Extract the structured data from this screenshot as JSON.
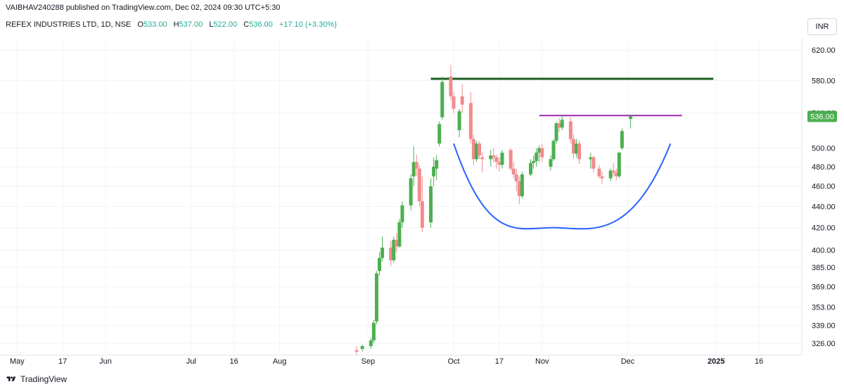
{
  "header": {
    "published_line": "VAIBHAV240288 published on TradingView.com, Dec 02, 2024 09:30 UTC+5:30"
  },
  "legend": {
    "symbol": "REFEX INDUSTRIES LTD, 1D, NSE",
    "open_label": "O",
    "open_value": "533.00",
    "high_label": "H",
    "high_value": "537.00",
    "low_label": "L",
    "low_value": "522.00",
    "close_label": "C",
    "close_value": "536.00",
    "change": "+17.10 (+3.30%)"
  },
  "currency_button": "INR",
  "footer": {
    "brand": "TradingView"
  },
  "colors": {
    "up": "#4caf50",
    "down": "#f28b8d",
    "resistance": "#1b5e20",
    "neckline": "#9c27b0",
    "cup": "#2962ff"
  },
  "chart_data": {
    "type": "candlestick",
    "price_axis": {
      "ticks": [
        620,
        580,
        540,
        500,
        480,
        460,
        440,
        420,
        400,
        385,
        369,
        353,
        339,
        326
      ],
      "tick_labels": [
        "620.00",
        "580.00",
        "540.00",
        "500.00",
        "480.00",
        "460.00",
        "440.00",
        "420.00",
        "400.00",
        "385.00",
        "369.00",
        "353.00",
        "339.00",
        "326.00"
      ],
      "scale": "log",
      "last_price_label": "536.00"
    },
    "time_axis": {
      "labels": [
        {
          "date": "2024-05-01",
          "text": "May",
          "bold": false
        },
        {
          "date": "2024-05-17",
          "text": "17",
          "bold": false
        },
        {
          "date": "2024-06-01",
          "text": "Jun",
          "bold": false
        },
        {
          "date": "2024-07-01",
          "text": "Jul",
          "bold": false
        },
        {
          "date": "2024-07-16",
          "text": "16",
          "bold": false
        },
        {
          "date": "2024-08-01",
          "text": "Aug",
          "bold": false
        },
        {
          "date": "2024-09-01",
          "text": "Sep",
          "bold": false
        },
        {
          "date": "2024-10-01",
          "text": "Oct",
          "bold": false
        },
        {
          "date": "2024-10-17",
          "text": "17",
          "bold": false
        },
        {
          "date": "2024-11-01",
          "text": "Nov",
          "bold": false
        },
        {
          "date": "2024-12-01",
          "text": "Dec",
          "bold": false
        },
        {
          "date": "2025-01-01",
          "text": "2025",
          "bold": true
        },
        {
          "date": "2025-01-16",
          "text": "16",
          "bold": false
        }
      ],
      "range": [
        "2024-04-27",
        "2025-01-31"
      ]
    },
    "candles": [
      {
        "t": "2024-08-28",
        "o": 321,
        "h": 324,
        "l": 318,
        "c": 320
      },
      {
        "t": "2024-08-30",
        "o": 322,
        "h": 325,
        "l": 320,
        "c": 324
      },
      {
        "t": "2024-09-02",
        "o": 324,
        "h": 330,
        "l": 322,
        "c": 328
      },
      {
        "t": "2024-09-03",
        "o": 328,
        "h": 343,
        "l": 326,
        "c": 341
      },
      {
        "t": "2024-09-04",
        "o": 342,
        "h": 382,
        "l": 340,
        "c": 380
      },
      {
        "t": "2024-09-05",
        "o": 382,
        "h": 398,
        "l": 378,
        "c": 393
      },
      {
        "t": "2024-09-06",
        "o": 393,
        "h": 412,
        "l": 390,
        "c": 402
      },
      {
        "t": "2024-09-09",
        "o": 402,
        "h": 408,
        "l": 386,
        "c": 391
      },
      {
        "t": "2024-09-10",
        "o": 391,
        "h": 412,
        "l": 389,
        "c": 409
      },
      {
        "t": "2024-09-11",
        "o": 409,
        "h": 415,
        "l": 398,
        "c": 403
      },
      {
        "t": "2024-09-12",
        "o": 403,
        "h": 428,
        "l": 402,
        "c": 425
      },
      {
        "t": "2024-09-13",
        "o": 425,
        "h": 445,
        "l": 420,
        "c": 441
      },
      {
        "t": "2024-09-16",
        "o": 441,
        "h": 472,
        "l": 436,
        "c": 468
      },
      {
        "t": "2024-09-17",
        "o": 470,
        "h": 502,
        "l": 460,
        "c": 485
      },
      {
        "t": "2024-09-18",
        "o": 485,
        "h": 493,
        "l": 470,
        "c": 478
      },
      {
        "t": "2024-09-19",
        "o": 478,
        "h": 482,
        "l": 440,
        "c": 445
      },
      {
        "t": "2024-09-20",
        "o": 445,
        "h": 470,
        "l": 416,
        "c": 420
      },
      {
        "t": "2024-09-23",
        "o": 425,
        "h": 468,
        "l": 420,
        "c": 460
      },
      {
        "t": "2024-09-24",
        "o": 470,
        "h": 490,
        "l": 460,
        "c": 480
      },
      {
        "t": "2024-09-25",
        "o": 478,
        "h": 492,
        "l": 466,
        "c": 487
      },
      {
        "t": "2024-09-26",
        "o": 505,
        "h": 530,
        "l": 502,
        "c": 527
      },
      {
        "t": "2024-09-27",
        "o": 535,
        "h": 585,
        "l": 532,
        "c": 578
      },
      {
        "t": "2024-09-30",
        "o": 585,
        "h": 600,
        "l": 555,
        "c": 560
      },
      {
        "t": "2024-10-01",
        "o": 560,
        "h": 565,
        "l": 540,
        "c": 545
      },
      {
        "t": "2024-10-03",
        "o": 520,
        "h": 545,
        "l": 512,
        "c": 542
      },
      {
        "t": "2024-10-04",
        "o": 560,
        "h": 575,
        "l": 540,
        "c": 550
      },
      {
        "t": "2024-10-07",
        "o": 552,
        "h": 565,
        "l": 505,
        "c": 510
      },
      {
        "t": "2024-10-08",
        "o": 510,
        "h": 515,
        "l": 482,
        "c": 488
      },
      {
        "t": "2024-10-09",
        "o": 488,
        "h": 508,
        "l": 485,
        "c": 505
      },
      {
        "t": "2024-10-10",
        "o": 505,
        "h": 508,
        "l": 488,
        "c": 492
      },
      {
        "t": "2024-10-11",
        "o": 490,
        "h": 495,
        "l": 474,
        "c": 488
      },
      {
        "t": "2024-10-14",
        "o": 488,
        "h": 498,
        "l": 480,
        "c": 492
      },
      {
        "t": "2024-10-15",
        "o": 492,
        "h": 500,
        "l": 485,
        "c": 490
      },
      {
        "t": "2024-10-16",
        "o": 490,
        "h": 493,
        "l": 478,
        "c": 485
      },
      {
        "t": "2024-10-17",
        "o": 485,
        "h": 490,
        "l": 475,
        "c": 482
      },
      {
        "t": "2024-10-18",
        "o": 482,
        "h": 498,
        "l": 478,
        "c": 495
      },
      {
        "t": "2024-10-21",
        "o": 498,
        "h": 500,
        "l": 476,
        "c": 478
      },
      {
        "t": "2024-10-22",
        "o": 478,
        "h": 485,
        "l": 468,
        "c": 472
      },
      {
        "t": "2024-10-23",
        "o": 472,
        "h": 478,
        "l": 455,
        "c": 465
      },
      {
        "t": "2024-10-24",
        "o": 465,
        "h": 470,
        "l": 442,
        "c": 450
      },
      {
        "t": "2024-10-25",
        "o": 450,
        "h": 475,
        "l": 448,
        "c": 472
      },
      {
        "t": "2024-10-28",
        "o": 472,
        "h": 488,
        "l": 470,
        "c": 484
      },
      {
        "t": "2024-10-29",
        "o": 484,
        "h": 492,
        "l": 478,
        "c": 486
      },
      {
        "t": "2024-10-30",
        "o": 486,
        "h": 500,
        "l": 480,
        "c": 495
      },
      {
        "t": "2024-10-31",
        "o": 495,
        "h": 503,
        "l": 485,
        "c": 500
      },
      {
        "t": "2024-11-01",
        "o": 500,
        "h": 505,
        "l": 485,
        "c": 490
      },
      {
        "t": "2024-11-04",
        "o": 480,
        "h": 492,
        "l": 476,
        "c": 488
      },
      {
        "t": "2024-11-05",
        "o": 488,
        "h": 510,
        "l": 486,
        "c": 508
      },
      {
        "t": "2024-11-06",
        "o": 508,
        "h": 530,
        "l": 505,
        "c": 528
      },
      {
        "t": "2024-11-07",
        "o": 528,
        "h": 534,
        "l": 518,
        "c": 523
      },
      {
        "t": "2024-11-08",
        "o": 523,
        "h": 537,
        "l": 520,
        "c": 532
      },
      {
        "t": "2024-11-11",
        "o": 530,
        "h": 535,
        "l": 505,
        "c": 510
      },
      {
        "t": "2024-11-12",
        "o": 510,
        "h": 515,
        "l": 488,
        "c": 494
      },
      {
        "t": "2024-11-13",
        "o": 494,
        "h": 510,
        "l": 490,
        "c": 505
      },
      {
        "t": "2024-11-14",
        "o": 505,
        "h": 508,
        "l": 483,
        "c": 488
      },
      {
        "t": "2024-11-18",
        "o": 488,
        "h": 495,
        "l": 478,
        "c": 490
      },
      {
        "t": "2024-11-19",
        "o": 490,
        "h": 492,
        "l": 474,
        "c": 478
      },
      {
        "t": "2024-11-21",
        "o": 478,
        "h": 482,
        "l": 468,
        "c": 470
      },
      {
        "t": "2024-11-22",
        "o": 470,
        "h": 475,
        "l": 462,
        "c": 468
      },
      {
        "t": "2024-11-25",
        "o": 468,
        "h": 478,
        "l": 465,
        "c": 476
      },
      {
        "t": "2024-11-26",
        "o": 476,
        "h": 484,
        "l": 470,
        "c": 474
      },
      {
        "t": "2024-11-27",
        "o": 474,
        "h": 478,
        "l": 466,
        "c": 470
      },
      {
        "t": "2024-11-28",
        "o": 470,
        "h": 496,
        "l": 468,
        "c": 495
      },
      {
        "t": "2024-11-29",
        "o": 500,
        "h": 522,
        "l": 498,
        "c": 519
      },
      {
        "t": "2024-12-02",
        "o": 533,
        "h": 537,
        "l": 522,
        "c": 536
      }
    ],
    "drawings": [
      {
        "kind": "horizontal_line",
        "name": "resistance",
        "price": 582,
        "from": "2024-09-23",
        "to": "2024-12-31",
        "color": "#1b5e20"
      },
      {
        "kind": "horizontal_line",
        "name": "neckline",
        "price": 537,
        "from": "2024-10-31",
        "to": "2024-12-20",
        "color": "#9c27b0"
      },
      {
        "kind": "arc",
        "name": "cup",
        "start": {
          "t": "2024-10-01",
          "p": 505
        },
        "bottom": {
          "t": "2024-11-05",
          "p": 420
        },
        "end": {
          "t": "2024-12-16",
          "p": 505
        },
        "color": "#2962ff"
      }
    ]
  }
}
